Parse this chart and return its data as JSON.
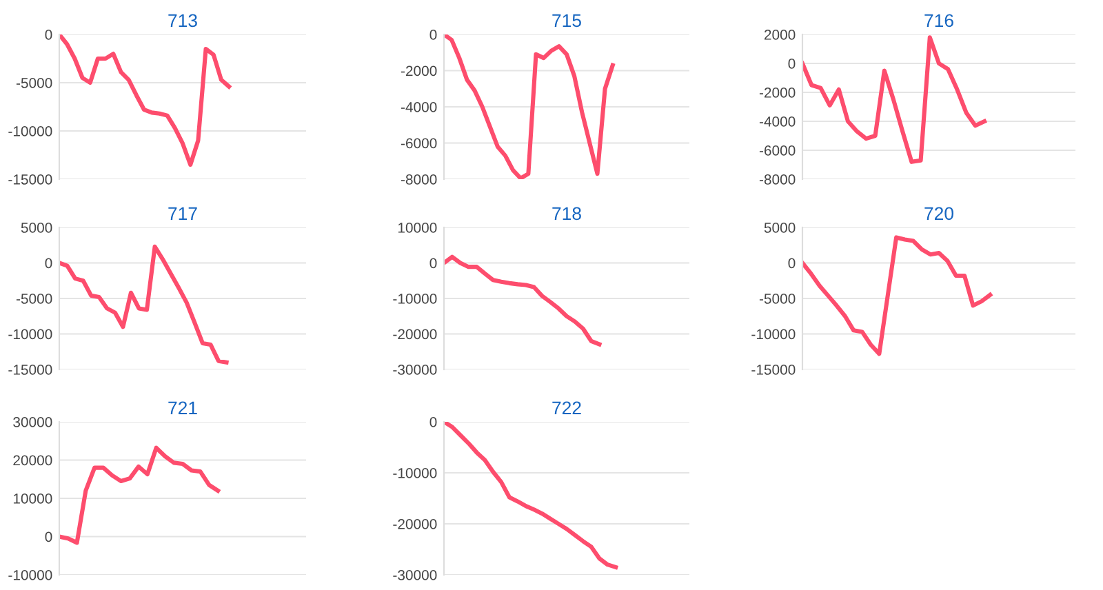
{
  "chart_data": [
    {
      "type": "line",
      "title": "713",
      "categories": [
        null,
        null,
        null,
        null,
        null,
        null,
        null,
        null,
        null,
        null,
        null,
        null,
        null,
        null,
        null,
        null,
        null,
        null,
        null,
        null,
        null,
        null,
        null,
        null,
        null,
        null,
        null,
        null,
        null,
        null,
        null,
        null,
        null
      ],
      "series": [
        {
          "color": "#fd4d6d",
          "values": [
            0,
            -1000,
            -2500,
            -4500,
            -5000,
            -2500,
            -2500,
            -2000,
            -3900,
            -4700,
            -6300,
            -7800,
            -8100,
            -8200,
            -8400,
            -9700,
            -11300,
            -13500,
            -11000,
            -1500,
            -2100,
            -4700,
            -5400,
            null,
            null,
            null,
            null,
            null,
            null,
            null,
            null,
            null,
            null
          ]
        }
      ],
      "ylim": [
        -15000,
        0
      ],
      "yticks": [
        -15000,
        -10000,
        -5000,
        0
      ],
      "grid": "y",
      "tick_labels": "y",
      "marker": "none",
      "line_style": "solid"
    },
    {
      "type": "line",
      "title": "715",
      "categories": [
        null,
        null,
        null,
        null,
        null,
        null,
        null,
        null,
        null,
        null,
        null,
        null,
        null,
        null,
        null,
        null,
        null,
        null,
        null,
        null,
        null,
        null,
        null,
        null,
        null,
        null,
        null,
        null,
        null,
        null,
        null,
        null,
        null
      ],
      "series": [
        {
          "color": "#fd4d6d",
          "values": [
            0,
            -300,
            -1300,
            -2500,
            -3100,
            -4000,
            -5100,
            -6200,
            -6700,
            -7500,
            -7950,
            -7700,
            -1100,
            -1300,
            -900,
            -650,
            -1100,
            -2300,
            -4300,
            -6000,
            -7700,
            -3000,
            -1700,
            null,
            null,
            null,
            null,
            null,
            null,
            null,
            null,
            null,
            null
          ]
        }
      ],
      "ylim": [
        -8000,
        0
      ],
      "yticks": [
        -8000,
        -6000,
        -4000,
        -2000,
        0
      ],
      "grid": "y",
      "tick_labels": "y",
      "marker": "none",
      "line_style": "solid"
    },
    {
      "type": "line",
      "title": "716",
      "categories": [
        null,
        null,
        null,
        null,
        null,
        null,
        null,
        null,
        null,
        null,
        null,
        null,
        null,
        null,
        null,
        null,
        null,
        null,
        null,
        null,
        null,
        null,
        null,
        null,
        null,
        null,
        null,
        null,
        null,
        null,
        null
      ],
      "series": [
        {
          "color": "#fd4d6d",
          "values": [
            0,
            -1500,
            -1700,
            -2900,
            -1800,
            -4000,
            -4700,
            -5200,
            -5000,
            -500,
            -2500,
            -4700,
            -6800,
            -6700,
            1800,
            0,
            -400,
            -1800,
            -3400,
            -4300,
            -4000,
            null,
            null,
            null,
            null,
            null,
            null,
            null,
            null,
            null,
            null
          ]
        }
      ],
      "ylim": [
        -8000,
        2000
      ],
      "yticks": [
        -8000,
        -6000,
        -4000,
        -2000,
        0,
        2000
      ],
      "grid": "y",
      "tick_labels": "y",
      "marker": "none",
      "line_style": "solid"
    },
    {
      "type": "line",
      "title": "717",
      "categories": [
        null,
        null,
        null,
        null,
        null,
        null,
        null,
        null,
        null,
        null,
        null,
        null,
        null,
        null,
        null,
        null,
        null,
        null,
        null,
        null,
        null,
        null,
        null,
        null,
        null,
        null,
        null,
        null,
        null,
        null,
        null,
        null
      ],
      "series": [
        {
          "color": "#fd4d6d",
          "values": [
            0,
            -400,
            -2200,
            -2500,
            -4600,
            -4800,
            -6400,
            -7000,
            -9000,
            -4200,
            -6400,
            -6600,
            2300,
            500,
            -1500,
            -3500,
            -5600,
            -8400,
            -11300,
            -11500,
            -13800,
            -14000,
            null,
            null,
            null,
            null,
            null,
            null,
            null,
            null,
            null,
            null
          ]
        }
      ],
      "ylim": [
        -15000,
        5000
      ],
      "yticks": [
        -15000,
        -10000,
        -5000,
        0,
        5000
      ],
      "grid": "y",
      "tick_labels": "y",
      "marker": "none",
      "line_style": "solid"
    },
    {
      "type": "line",
      "title": "718",
      "categories": [
        null,
        null,
        null,
        null,
        null,
        null,
        null,
        null,
        null,
        null,
        null,
        null,
        null,
        null,
        null,
        null,
        null,
        null,
        null,
        null,
        null,
        null,
        null,
        null,
        null,
        null,
        null,
        null,
        null,
        null,
        null
      ],
      "series": [
        {
          "color": "#fd4d6d",
          "values": [
            0,
            1700,
            0,
            -1100,
            -1100,
            -3000,
            -4800,
            -5300,
            -5700,
            -6000,
            -6200,
            -6800,
            -9300,
            -11000,
            -12800,
            -15000,
            -16500,
            -18500,
            -22000,
            -22900,
            null,
            null,
            null,
            null,
            null,
            null,
            null,
            null,
            null,
            null,
            null
          ]
        }
      ],
      "ylim": [
        -30000,
        10000
      ],
      "yticks": [
        -30000,
        -20000,
        -10000,
        0,
        10000
      ],
      "grid": "y",
      "tick_labels": "y",
      "marker": "none",
      "line_style": "solid"
    },
    {
      "type": "line",
      "title": "720",
      "categories": [
        null,
        null,
        null,
        null,
        null,
        null,
        null,
        null,
        null,
        null,
        null,
        null,
        null,
        null,
        null,
        null,
        null,
        null,
        null,
        null,
        null,
        null,
        null,
        null,
        null,
        null,
        null,
        null,
        null,
        null,
        null,
        null,
        null
      ],
      "series": [
        {
          "color": "#fd4d6d",
          "values": [
            0,
            -1500,
            -3200,
            -4600,
            -6000,
            -7500,
            -9500,
            -9700,
            -11500,
            -12800,
            -4600,
            3600,
            3300,
            3100,
            1900,
            1200,
            1400,
            300,
            -1800,
            -1800,
            -6000,
            -5400,
            -4500,
            null,
            null,
            null,
            null,
            null,
            null,
            null,
            null,
            null,
            null
          ]
        }
      ],
      "ylim": [
        -15000,
        5000
      ],
      "yticks": [
        -15000,
        -10000,
        -5000,
        0,
        5000
      ],
      "grid": "y",
      "tick_labels": "y",
      "marker": "none",
      "line_style": "solid"
    },
    {
      "type": "line",
      "title": "721",
      "categories": [
        null,
        null,
        null,
        null,
        null,
        null,
        null,
        null,
        null,
        null,
        null,
        null,
        null,
        null,
        null,
        null,
        null,
        null,
        null,
        null,
        null,
        null,
        null,
        null,
        null,
        null,
        null,
        null,
        null
      ],
      "series": [
        {
          "color": "#fd4d6d",
          "values": [
            0,
            -500,
            -1600,
            12000,
            18000,
            18000,
            16000,
            14500,
            15200,
            18300,
            16300,
            23200,
            21000,
            19300,
            19000,
            17300,
            17000,
            13500,
            12000,
            null,
            null,
            null,
            null,
            null,
            null,
            null,
            null,
            null,
            null
          ]
        }
      ],
      "ylim": [
        -10000,
        30000
      ],
      "yticks": [
        -10000,
        0,
        10000,
        20000,
        30000
      ],
      "grid": "y",
      "tick_labels": "y",
      "marker": "none",
      "line_style": "solid"
    },
    {
      "type": "line",
      "title": "722",
      "categories": [
        null,
        null,
        null,
        null,
        null,
        null,
        null,
        null,
        null,
        null,
        null,
        null,
        null,
        null,
        null,
        null,
        null,
        null,
        null,
        null,
        null,
        null,
        null,
        null,
        null,
        null,
        null,
        null,
        null,
        null,
        null
      ],
      "series": [
        {
          "color": "#fd4d6d",
          "values": [
            0,
            -1000,
            -2600,
            -4200,
            -6000,
            -7500,
            -9800,
            -11800,
            -14800,
            -15600,
            -16500,
            -17200,
            -18000,
            -19000,
            -20000,
            -21000,
            -22200,
            -23400,
            -24500,
            -26800,
            -28000,
            -28500,
            null,
            null,
            null,
            null,
            null,
            null,
            null,
            null,
            null
          ]
        }
      ],
      "ylim": [
        -30000,
        0
      ],
      "yticks": [
        -30000,
        -20000,
        -10000,
        0
      ],
      "grid": "y",
      "tick_labels": "y",
      "marker": "none",
      "line_style": "solid"
    }
  ]
}
